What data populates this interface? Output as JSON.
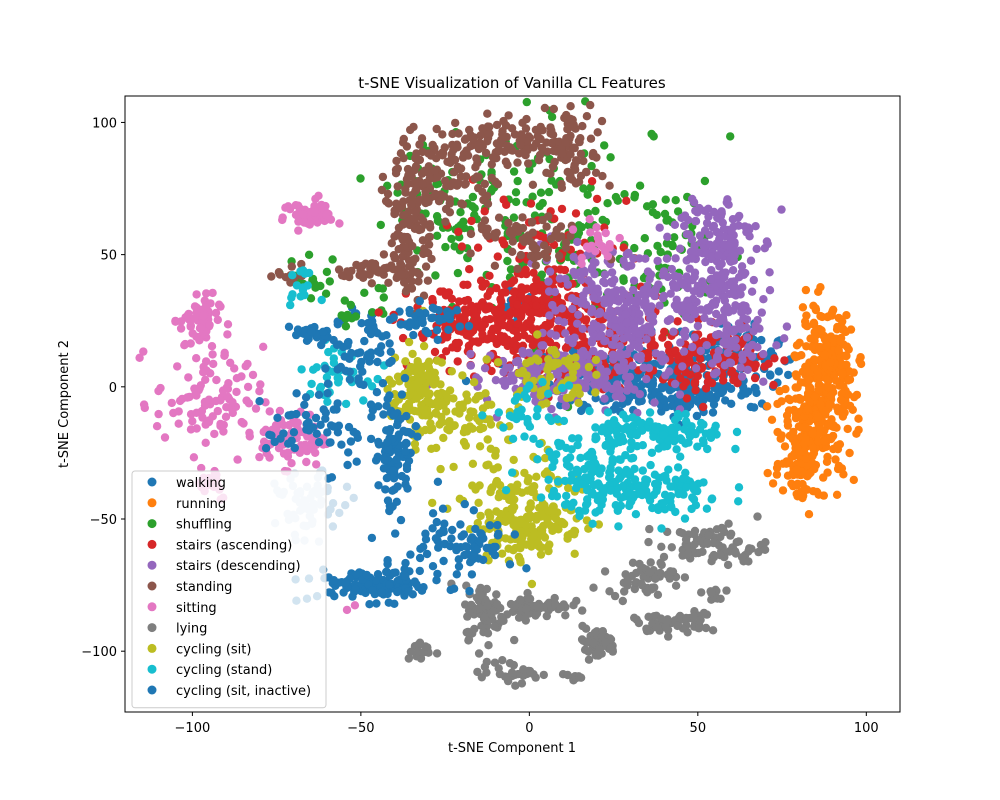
{
  "chart_data": {
    "type": "scatter",
    "title": "t-SNE Visualization of Vanilla CL Features",
    "xlabel": "t-SNE Component 1",
    "ylabel": "t-SNE Component 2",
    "xlim": [
      -120,
      110
    ],
    "ylim": [
      -123,
      110
    ],
    "xticks": [
      -100,
      -50,
      0,
      50,
      100
    ],
    "yticks": [
      -100,
      -50,
      0,
      50,
      100
    ],
    "xtick_labels": [
      "−100",
      "−50",
      "0",
      "50",
      "100"
    ],
    "ytick_labels": [
      "−100",
      "−50",
      "0",
      "50",
      "100"
    ],
    "grid": false,
    "legend_position": "lower-left",
    "series": [
      {
        "name": "walking",
        "color": "#1f77b4",
        "clusters": [
          [
            [
              30,
              3
            ],
            [
              15,
              6
            ],
            200
          ],
          [
            [
              58,
              8
            ],
            [
              8,
              8
            ],
            120
          ],
          [
            [
              45,
              -2
            ],
            [
              8,
              5
            ],
            80
          ],
          [
            [
              -50,
              25
            ],
            [
              5,
              3
            ],
            20
          ],
          [
            [
              -5,
              30
            ],
            [
              4,
              4
            ],
            20
          ]
        ]
      },
      {
        "name": "running",
        "color": "#ff7f0e",
        "clusters": [
          [
            [
              88,
              8
            ],
            [
              4,
              10
            ],
            220
          ],
          [
            [
              85,
              -15
            ],
            [
              6,
              10
            ],
            200
          ],
          [
            [
              80,
              -30
            ],
            [
              3,
              6
            ],
            60
          ]
        ]
      },
      {
        "name": "shuffling",
        "color": "#2ca02c",
        "clusters": [
          [
            [
              10,
              60
            ],
            [
              20,
              20
            ],
            150
          ],
          [
            [
              -20,
              70
            ],
            [
              10,
              10
            ],
            60
          ],
          [
            [
              40,
              50
            ],
            [
              8,
              12
            ],
            50
          ],
          [
            [
              -65,
              40
            ],
            [
              5,
              4
            ],
            20
          ],
          [
            [
              -50,
              30
            ],
            [
              4,
              4
            ],
            15
          ]
        ]
      },
      {
        "name": "stairs (ascending)",
        "color": "#d62728",
        "clusters": [
          [
            [
              -15,
              22
            ],
            [
              10,
              8
            ],
            200
          ],
          [
            [
              5,
              30
            ],
            [
              8,
              6
            ],
            120
          ],
          [
            [
              20,
              15
            ],
            [
              12,
              8
            ],
            150
          ],
          [
            [
              55,
              10
            ],
            [
              10,
              6
            ],
            120
          ],
          [
            [
              0,
              50
            ],
            [
              15,
              12
            ],
            80
          ]
        ]
      },
      {
        "name": "stairs (descending)",
        "color": "#9467bd",
        "clusters": [
          [
            [
              55,
              55
            ],
            [
              6,
              10
            ],
            140
          ],
          [
            [
              50,
              35
            ],
            [
              10,
              6
            ],
            80
          ],
          [
            [
              30,
              25
            ],
            [
              10,
              10
            ],
            200
          ],
          [
            [
              10,
              5
            ],
            [
              15,
              6
            ],
            200
          ],
          [
            [
              60,
              20
            ],
            [
              6,
              8
            ],
            80
          ],
          [
            [
              20,
              40
            ],
            [
              8,
              6
            ],
            60
          ]
        ]
      },
      {
        "name": "standing",
        "color": "#8c564b",
        "clusters": [
          [
            [
              -10,
              93
            ],
            [
              10,
              4
            ],
            100
          ],
          [
            [
              -25,
              80
            ],
            [
              8,
              8
            ],
            100
          ],
          [
            [
              -35,
              60
            ],
            [
              3,
              15
            ],
            120
          ],
          [
            [
              12,
              90
            ],
            [
              5,
              8
            ],
            80
          ],
          [
            [
              -45,
              44
            ],
            [
              6,
              2
            ],
            40
          ],
          [
            [
              0,
              55
            ],
            [
              8,
              5
            ],
            60
          ],
          [
            [
              -72,
              42
            ],
            [
              3,
              2
            ],
            10
          ]
        ]
      },
      {
        "name": "sitting",
        "color": "#e377c2",
        "clusters": [
          [
            [
              -65,
              65
            ],
            [
              4,
              3
            ],
            50
          ],
          [
            [
              -98,
              25
            ],
            [
              3,
              5
            ],
            60
          ],
          [
            [
              -95,
              -5
            ],
            [
              8,
              10
            ],
            100
          ],
          [
            [
              -70,
              -20
            ],
            [
              5,
              5
            ],
            80
          ],
          [
            [
              -95,
              -35
            ],
            [
              3,
              4
            ],
            20
          ],
          [
            [
              20,
              55
            ],
            [
              4,
              5
            ],
            20
          ],
          [
            [
              -53,
              -83
            ],
            [
              1,
              1
            ],
            2
          ]
        ]
      },
      {
        "name": "lying",
        "color": "#7f7f7f",
        "clusters": [
          [
            [
              -13,
              -85
            ],
            [
              3,
              5
            ],
            80
          ],
          [
            [
              2,
              -83
            ],
            [
              5,
              2
            ],
            60
          ],
          [
            [
              20,
              -97
            ],
            [
              3,
              3
            ],
            50
          ],
          [
            [
              33,
              -72
            ],
            [
              5,
              3
            ],
            50
          ],
          [
            [
              55,
              -60
            ],
            [
              8,
              4
            ],
            80
          ],
          [
            [
              40,
              -90
            ],
            [
              5,
              2
            ],
            40
          ],
          [
            [
              -5,
              -108
            ],
            [
              5,
              2
            ],
            30
          ],
          [
            [
              -33,
              -100
            ],
            [
              2,
              2
            ],
            15
          ],
          [
            [
              13,
              -110
            ],
            [
              2,
              1
            ],
            10
          ],
          [
            [
              55,
              -78
            ],
            [
              2,
              2
            ],
            10
          ],
          [
            [
              50,
              -87
            ],
            [
              2,
              2
            ],
            10
          ]
        ]
      },
      {
        "name": "cycling (sit)",
        "color": "#bcbd22",
        "clusters": [
          [
            [
              -33,
              0
            ],
            [
              4,
              8
            ],
            100
          ],
          [
            [
              -25,
              -10
            ],
            [
              8,
              6
            ],
            80
          ],
          [
            [
              0,
              -50
            ],
            [
              8,
              8
            ],
            180
          ],
          [
            [
              5,
              5
            ],
            [
              6,
              6
            ],
            60
          ],
          [
            [
              -10,
              -30
            ],
            [
              10,
              15
            ],
            50
          ]
        ]
      },
      {
        "name": "cycling (stand)",
        "color": "#17becf",
        "clusters": [
          [
            [
              38,
              -18
            ],
            [
              10,
              4
            ],
            120
          ],
          [
            [
              35,
              -40
            ],
            [
              12,
              5
            ],
            150
          ],
          [
            [
              15,
              -30
            ],
            [
              8,
              8
            ],
            80
          ],
          [
            [
              -58,
              5
            ],
            [
              5,
              5
            ],
            40
          ],
          [
            [
              -68,
              38
            ],
            [
              2,
              3
            ],
            15
          ],
          [
            [
              0,
              -10
            ],
            [
              5,
              5
            ],
            30
          ]
        ]
      },
      {
        "name": "cycling (sit, inactive)",
        "color": "#1f77b4",
        "clusters": [
          [
            [
              -45,
              -75
            ],
            [
              10,
              3
            ],
            120
          ],
          [
            [
              -40,
              -25
            ],
            [
              3,
              12
            ],
            100
          ],
          [
            [
              -20,
              -60
            ],
            [
              8,
              6
            ],
            80
          ],
          [
            [
              -62,
              -15
            ],
            [
              8,
              8
            ],
            60
          ],
          [
            [
              -65,
              20
            ],
            [
              3,
              2
            ],
            30
          ],
          [
            [
              -50,
              10
            ],
            [
              5,
              5
            ],
            40
          ],
          [
            [
              -30,
              25
            ],
            [
              5,
              3
            ],
            40
          ]
        ]
      },
      {
        "name": "",
        "color": "#cfe1ee",
        "clusters": [
          [
            [
              -65,
              -45
            ],
            [
              5,
              6
            ],
            60
          ]
        ]
      }
    ]
  }
}
